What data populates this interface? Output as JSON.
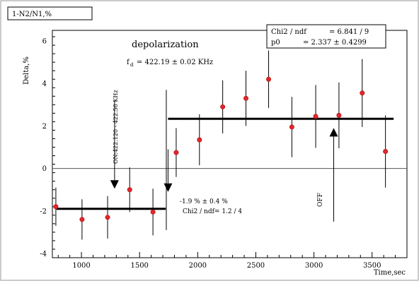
{
  "chart_data": {
    "type": "scatter",
    "title_box": "1-N2/N1,%",
    "xlabel": "Time,sec",
    "ylabel": "Delta,%",
    "xlim": [
      750,
      3800
    ],
    "ylim": [
      -4.2,
      6.5
    ],
    "x_ticks": [
      1000,
      1500,
      2000,
      2500,
      3000,
      3500
    ],
    "y_ticks": [
      -4,
      -2,
      0,
      2,
      4,
      6
    ],
    "grid": false,
    "points": [
      {
        "x": 780,
        "y": -1.8,
        "err": 0.9
      },
      {
        "x": 1005,
        "y": -2.4,
        "err": 0.95
      },
      {
        "x": 1225,
        "y": -2.3,
        "err": 1.0
      },
      {
        "x": 1415,
        "y": -1.0,
        "err": 1.05
      },
      {
        "x": 1615,
        "y": -2.05,
        "err": 1.1
      },
      {
        "x": 1815,
        "y": 0.75,
        "err": 1.15
      },
      {
        "x": 2015,
        "y": 1.35,
        "err": 1.2
      },
      {
        "x": 2215,
        "y": 2.9,
        "err": 1.25
      },
      {
        "x": 2415,
        "y": 3.3,
        "err": 1.3
      },
      {
        "x": 2610,
        "y": 4.2,
        "err": 1.35
      },
      {
        "x": 2810,
        "y": 1.95,
        "err": 1.42
      },
      {
        "x": 3015,
        "y": 2.45,
        "err": 1.48
      },
      {
        "x": 3215,
        "y": 2.5,
        "err": 1.55
      },
      {
        "x": 3415,
        "y": 3.55,
        "err": 1.6
      },
      {
        "x": 3615,
        "y": 0.8,
        "err": 1.7
      }
    ],
    "extra_error_bar": {
      "x": 1730,
      "y": 0.4,
      "err_low": 3.3,
      "err_high": 3.3
    },
    "fit_lines": [
      {
        "x_start": 785,
        "x_end": 1725,
        "y": -1.9
      },
      {
        "x_start": 1745,
        "x_end": 3685,
        "y": 2.34
      }
    ],
    "zero_line": 0,
    "stats_box": {
      "line1_label": "Chi2 / ndf",
      "line1_value": "= 6.841 / 9",
      "line2_label": "p0",
      "line2_value": "= 2.337 ± 0.4299"
    },
    "annotations": {
      "depol_title": "depolarization",
      "freq_f": "f",
      "freq_sub": "d",
      "freq_value": "= 422.19 ± 0.02 KHz",
      "on_label": "ON:422.120 - 422.50 KHz",
      "off_label": "OFF",
      "fit1_value": "-1.9 %  ± 0.4 %",
      "fit1_chi": "Chi2 / ndf= 1.2 / 4"
    },
    "arrows": [
      {
        "name": "on-arrow-1",
        "x": 1285,
        "y_from": 3.2,
        "y_to": -0.95
      },
      {
        "name": "on-arrow-2",
        "x": 1745,
        "y_from": 0.9,
        "y_to": -1.1
      },
      {
        "name": "off-arrow",
        "x": 3170,
        "y_from": -2.5,
        "y_to": 1.9
      }
    ],
    "colors": {
      "marker": "#e0262c",
      "marker_edge": "#b01010",
      "axis": "#000000",
      "frame": "#888888"
    }
  }
}
